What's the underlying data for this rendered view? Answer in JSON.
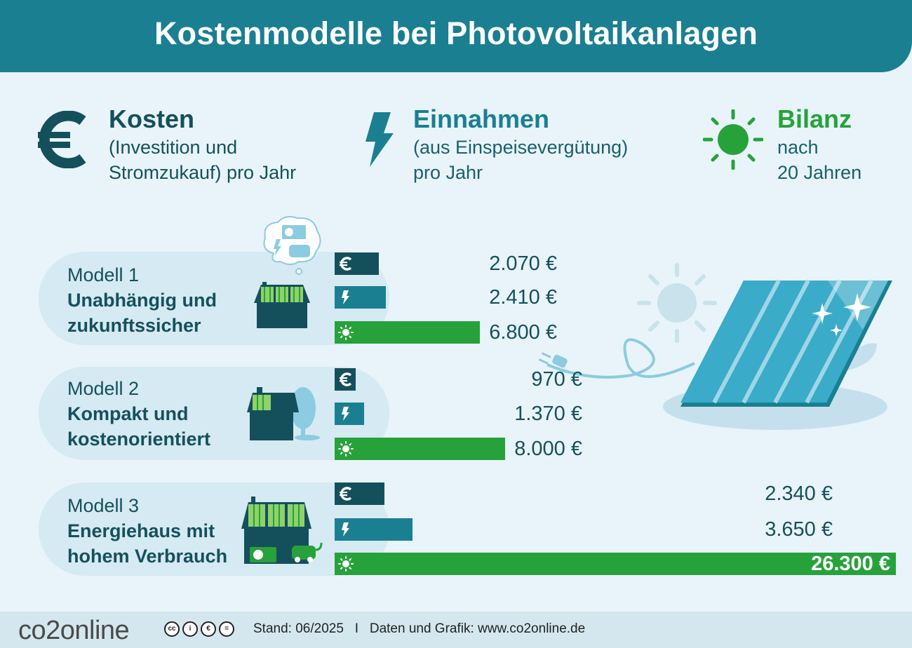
{
  "header": {
    "title": "Kostenmodelle bei Photovoltaikanlagen"
  },
  "legend": {
    "kosten": {
      "title": "Kosten",
      "sub": "(Investition und\nStromzukauf) pro Jahr"
    },
    "einnahmen": {
      "title": "Einnahmen",
      "sub": "(aus Einspeisevergütung)\npro Jahr"
    },
    "bilanz": {
      "title": "Bilanz",
      "sub": "nach\n20 Jahren"
    }
  },
  "colors": {
    "kosten": "#14505c",
    "einnahmen": "#1a7f91",
    "bilanz": "#27a23b",
    "header": "#1a7f91"
  },
  "models": [
    {
      "name": "Modell 1",
      "desc": "Unabhängig und\nzukunftssicher",
      "values_label": [
        "2.070 €",
        "2.410 €",
        "6.800 €"
      ]
    },
    {
      "name": "Modell 2",
      "desc": "Kompakt und\nkostenorientiert",
      "values_label": [
        "970 €",
        "1.370 €",
        "8.000 €"
      ]
    },
    {
      "name": "Modell 3",
      "desc": "Energiehaus mit\nhohem Verbrauch",
      "values_label": [
        "2.340 €",
        "3.650 €",
        "26.300 €"
      ]
    }
  ],
  "chart_data": {
    "type": "bar",
    "categories": [
      "Modell 1",
      "Modell 2",
      "Modell 3"
    ],
    "series": [
      {
        "name": "Kosten",
        "values": [
          2070,
          970,
          2340
        ]
      },
      {
        "name": "Einnahmen",
        "values": [
          2410,
          1370,
          3650
        ]
      },
      {
        "name": "Bilanz",
        "values": [
          6800,
          8000,
          26300
        ]
      }
    ],
    "value_unit": "€"
  },
  "footer": {
    "brand": "co2online",
    "text": "Stand: 06/2025   I   Daten und Grafik: www.co2online.de"
  }
}
